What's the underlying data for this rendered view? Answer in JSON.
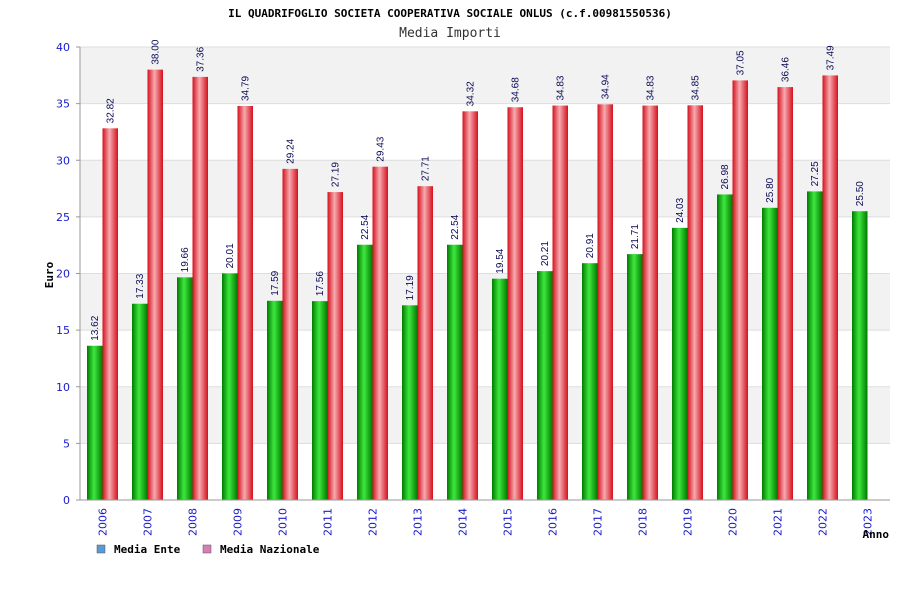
{
  "chart_data": {
    "type": "bar",
    "title": "IL QUADRIFOGLIO SOCIETA COOPERATIVA SOCIALE ONLUS (c.f.00981550536)",
    "subtitle": "Media Importi",
    "xlabel": "Anno",
    "ylabel": "Euro",
    "ylim": [
      0,
      40
    ],
    "yticks": [
      0,
      5,
      10,
      15,
      20,
      25,
      30,
      35,
      40
    ],
    "grid": true,
    "legend_position": "bottom-left",
    "categories": [
      "2006",
      "2007",
      "2008",
      "2009",
      "2010",
      "2011",
      "2012",
      "2013",
      "2014",
      "2015",
      "2016",
      "2017",
      "2018",
      "2019",
      "2020",
      "2021",
      "2022",
      "2023"
    ],
    "series": [
      {
        "name": "Media Ente",
        "legend_color": "#5b9bd5",
        "color": "#0fb30f",
        "values": [
          13.62,
          17.33,
          19.66,
          20.01,
          17.59,
          17.56,
          22.54,
          17.19,
          22.54,
          19.54,
          20.21,
          20.91,
          21.71,
          24.03,
          26.98,
          25.8,
          27.25,
          25.5
        ],
        "labels": [
          "13.62",
          "17.33",
          "19.66",
          "20.01",
          "17.59",
          "17.56",
          "22.54",
          "17.19",
          "22.54",
          "19.54",
          "20.21",
          "20.91",
          "21.71",
          "24.03",
          "26.98",
          "25.80",
          "27.25",
          "25.50"
        ]
      },
      {
        "name": "Media Nazionale",
        "legend_color": "#d77fb3",
        "color": "#e8202a",
        "values": [
          32.82,
          38.0,
          37.36,
          34.79,
          29.24,
          27.19,
          29.43,
          27.71,
          34.32,
          34.68,
          34.83,
          34.94,
          34.83,
          34.85,
          37.05,
          36.46,
          37.49,
          null
        ],
        "labels": [
          "32.82",
          "38.00",
          "37.36",
          "34.79",
          "29.24",
          "27.19",
          "29.43",
          "27.71",
          "34.32",
          "34.68",
          "34.83",
          "34.94",
          "34.83",
          "34.85",
          "37.05",
          "36.46",
          "37.49",
          ""
        ]
      }
    ]
  }
}
